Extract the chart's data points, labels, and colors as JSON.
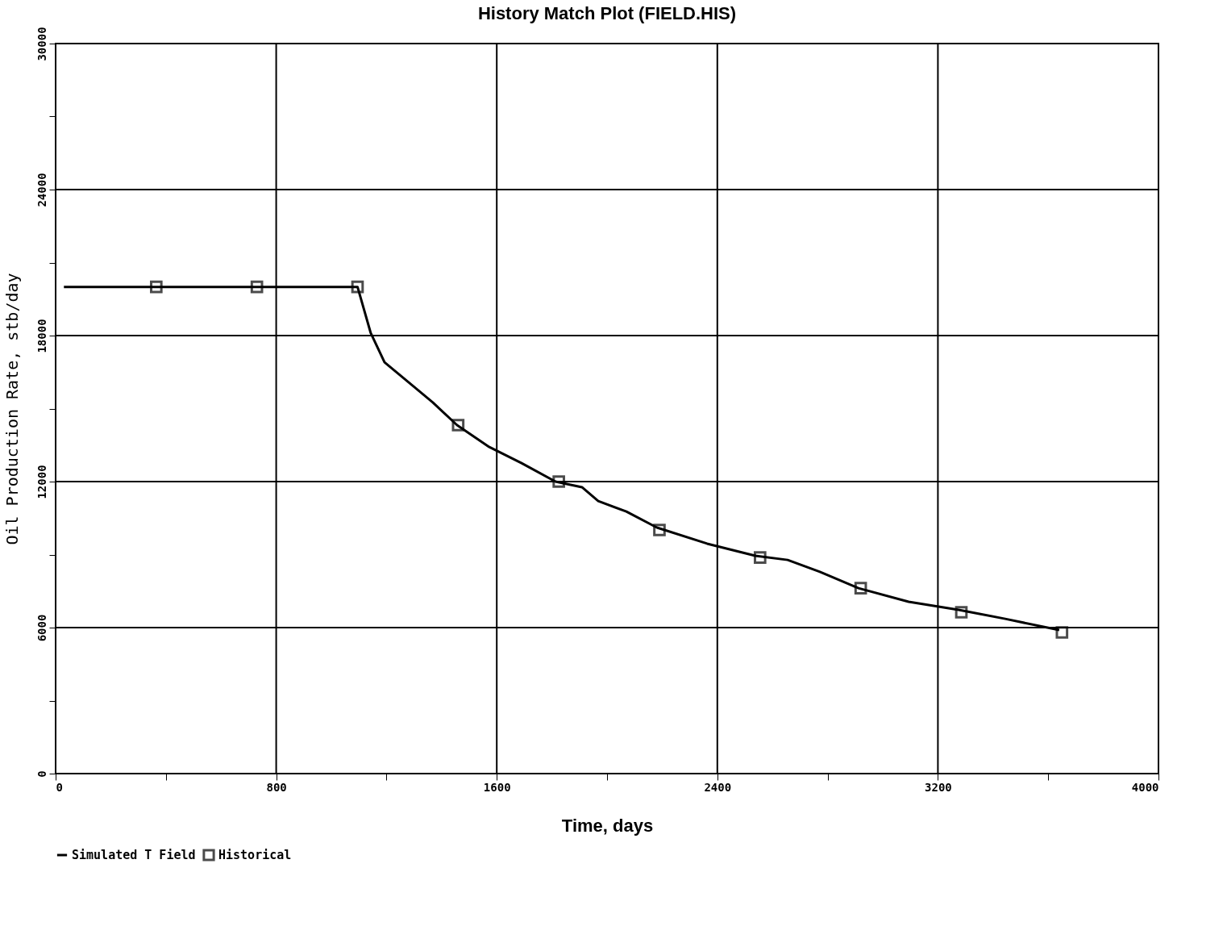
{
  "chart_data": {
    "type": "line",
    "title": "History Match Plot (FIELD.HIS)",
    "xlabel": "Time, days",
    "ylabel": "Oil Production Rate, stb/day",
    "xlim": [
      0,
      4000
    ],
    "xticks": [
      0,
      {
        "value": 400,
        "label": null
      },
      800,
      {
        "value": 1200,
        "label": null
      },
      1600,
      {
        "value": 2000,
        "label": null
      },
      2400,
      {
        "value": 2800,
        "label": null
      },
      3200,
      {
        "value": 3600,
        "label": null
      },
      4000
    ],
    "ylim": [
      0,
      30000
    ],
    "yticks": [
      0,
      {
        "value": 3000,
        "label": null
      },
      6000,
      {
        "value": 9000,
        "label": null
      },
      12000,
      {
        "value": 15000,
        "label": null
      },
      18000,
      {
        "value": 21000,
        "label": null
      },
      24000,
      {
        "value": 27000,
        "label": null
      },
      30000
    ],
    "grid": true,
    "legend": "bottom",
    "series": [
      {
        "name": "Simulated T Field",
        "color": "#000000",
        "marker": "none",
        "line_style": "solid",
        "x": [
          30,
          1095,
          1143,
          1193,
          1281,
          1368,
          1456,
          1573,
          1690,
          1813,
          1909,
          1968,
          2070,
          2181,
          2363,
          2538,
          2655,
          2772,
          2912,
          3094,
          3275,
          3444,
          3640
        ],
        "values": [
          20000,
          20000,
          18100,
          16900,
          16075,
          15250,
          14320,
          13420,
          12760,
          12000,
          11770,
          11200,
          10770,
          10110,
          9450,
          8950,
          8780,
          8290,
          7620,
          7060,
          6730,
          6360,
          5900
        ]
      },
      {
        "name": "Historical",
        "type": "scatter",
        "color": "#000000",
        "marker": "square",
        "x": [
          365,
          730,
          1095,
          1460,
          1825,
          2190,
          2555,
          2920,
          3285,
          3650
        ],
        "values": [
          20000,
          20000,
          20000,
          14320,
          12000,
          10010,
          8880,
          7620,
          6630,
          5800
        ]
      }
    ]
  }
}
